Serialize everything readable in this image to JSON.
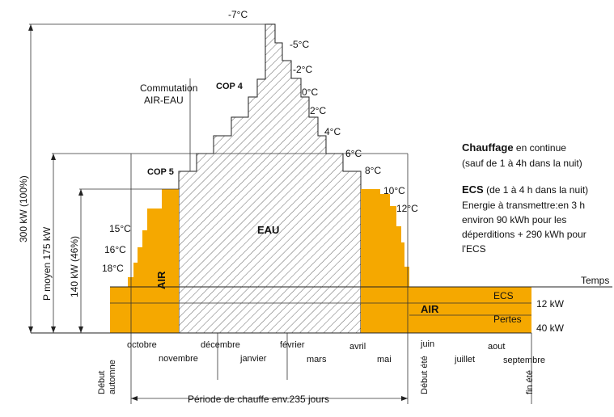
{
  "colors": {
    "air": "#f5a800",
    "eau_hatch": "#555555",
    "line": "#222222",
    "background": "#ffffff"
  },
  "temperatures": {
    "t_m7": "-7°C",
    "t_m5": "-5°C",
    "t_m2": "-2°C",
    "t_0": "0°C",
    "t_2": "2°C",
    "t_4": "4°C",
    "t_6": "6°C",
    "t_8": "8°C",
    "t_10": "10°C",
    "t_12": "12°C",
    "t_15": "15°C",
    "t_16": "16°C",
    "t_18": "18°C"
  },
  "labels": {
    "cop4": "COP 4",
    "cop5": "COP 5",
    "commutation_line1": "Commutation",
    "commutation_line2": "AIR-EAU",
    "eau": "EAU",
    "air_left": "AIR",
    "air_right": "AIR",
    "ecs": "ECS",
    "pertes": "Pertes",
    "temps": "Temps",
    "kw12": "12 kW",
    "kw40": "40 kW",
    "p300": "300 kW (100%)",
    "p175": "P moyen 175 kW",
    "p140": "140 kW (46%)",
    "periode": "Période de chauffe env.235 jours"
  },
  "months": {
    "octobre": "octobre",
    "novembre": "novembre",
    "decembre": "décembre",
    "janvier": "janvier",
    "fevrier": "février",
    "mars": "mars",
    "avril": "avril",
    "mai": "mai",
    "juin": "juin",
    "juillet": "juillet",
    "aout": "aout",
    "septembre": "septembre"
  },
  "seasons": {
    "debut_automne_1": "Début",
    "debut_automne_2": "automne",
    "debut_ete": "Début été",
    "fin_ete": "fin été"
  },
  "notes": {
    "chauffage_title": "Chauffage",
    "chauffage_rest": " en continue",
    "chauffage_sub": "(sauf de 1 à 4h dans la nuit)",
    "ecs_title": "ECS",
    "ecs_rest": " (de 1 à 4 h dans la nuit)",
    "energie_1": "Energie à transmettre:en 3 h",
    "energie_2": "environ 90 kWh pour les",
    "energie_3": "déperditions + 290 kWh pour",
    "energie_4": "l'ECS"
  }
}
